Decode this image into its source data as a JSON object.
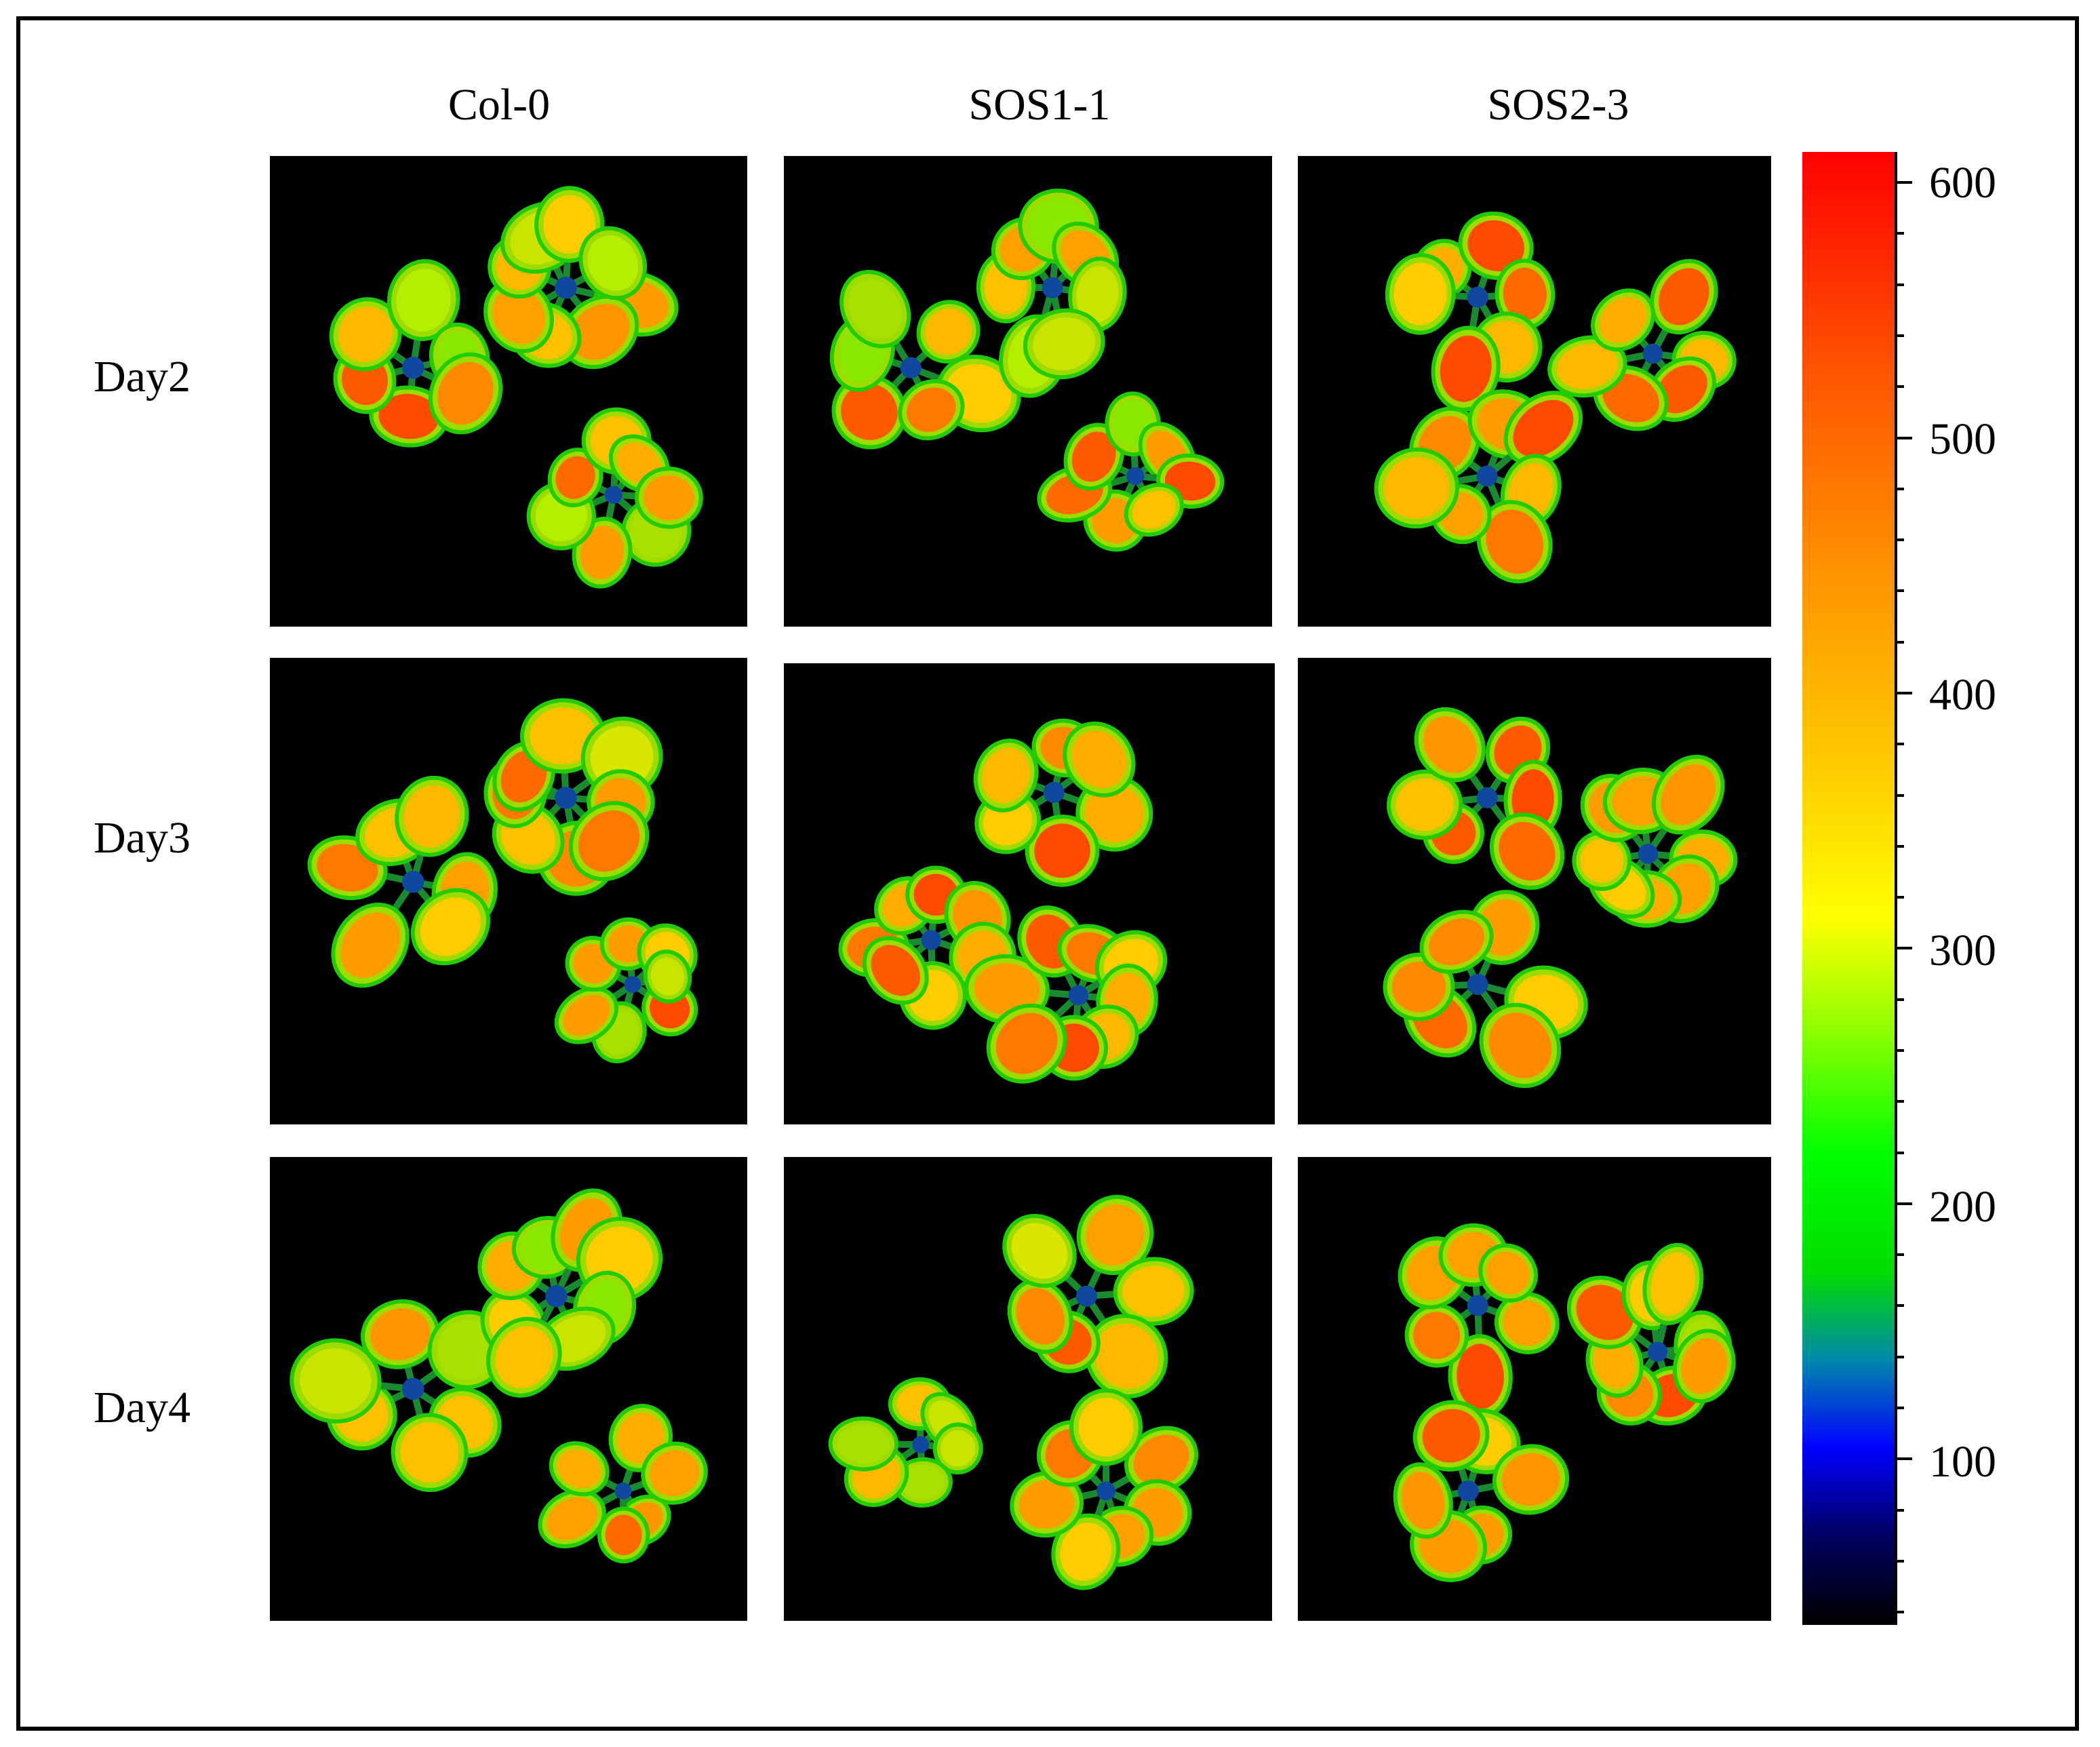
{
  "columns": [
    "Col-0",
    "SOS1-1",
    "SOS2-3"
  ],
  "rows": [
    "Day2",
    "Day3",
    "Day4"
  ],
  "colorbar": {
    "tick_labels": [
      "600",
      "500",
      "400",
      "300",
      "200",
      "100"
    ],
    "range": [
      35,
      612
    ],
    "colors": {
      "low": "#000000",
      "mid_low": "#0000ff",
      "mid": "#00ff00",
      "mid_high": "#ffff00",
      "high": "#ff0000"
    }
  },
  "colors": {
    "panel_background": "#000000",
    "frame": "#000000"
  }
}
